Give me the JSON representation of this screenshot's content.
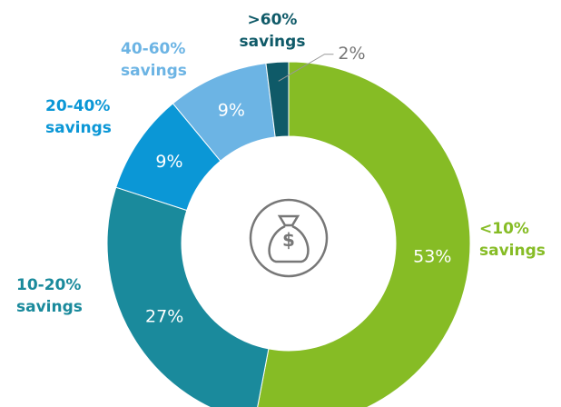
{
  "chart_data": {
    "type": "donut",
    "categories": [
      "<10% savings",
      "10-20% savings",
      "20-40% savings",
      "40-60% savings",
      ">60% savings"
    ],
    "values": [
      53,
      27,
      9,
      9,
      2
    ],
    "value_labels": [
      "53%",
      "27%",
      "9%",
      "9%",
      "2%"
    ],
    "colors": [
      "#86bc25",
      "#1a8a9c",
      "#0b97d6",
      "#6cb4e4",
      "#0f5a68"
    ]
  }
}
